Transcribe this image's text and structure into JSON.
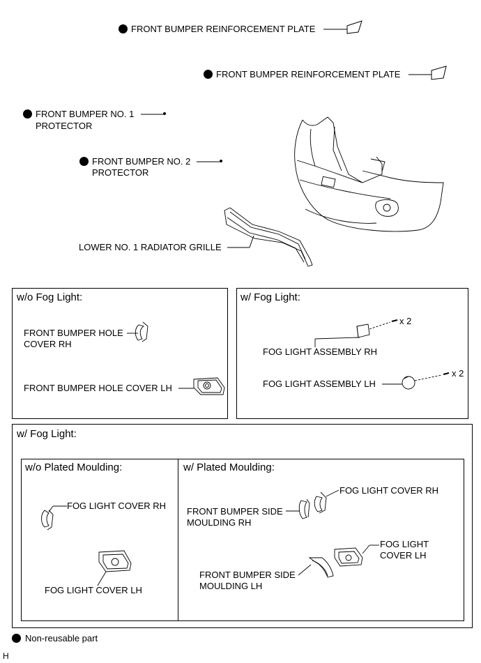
{
  "labels": {
    "reinforcement_plate_1": "FRONT BUMPER REINFORCEMENT PLATE",
    "reinforcement_plate_2": "FRONT BUMPER REINFORCEMENT PLATE",
    "protector_1_line1": "FRONT BUMPER NO. 1",
    "protector_1_line2": "PROTECTOR",
    "protector_2_line1": "FRONT BUMPER NO. 2",
    "protector_2_line2": "PROTECTOR",
    "lower_grille": "LOWER NO. 1 RADIATOR GRILLE"
  },
  "box_wo_fog": {
    "title": "w/o Fog Light:",
    "hole_cover_rh_line1": "FRONT BUMPER HOLE",
    "hole_cover_rh_line2": "COVER RH",
    "hole_cover_lh": "FRONT BUMPER HOLE COVER LH"
  },
  "box_w_fog": {
    "title": "w/ Fog Light:",
    "fog_assy_rh": "FOG LIGHT ASSEMBLY RH",
    "fog_assy_lh": "FOG LIGHT ASSEMBLY LH",
    "qty_rh": "x 2",
    "qty_lh": "x 2"
  },
  "box_w_fog_lower": {
    "title": "w/ Fog Light:",
    "wo_plated": {
      "title": "w/o Plated Moulding:",
      "cover_rh": "FOG LIGHT COVER RH",
      "cover_lh": "FOG LIGHT COVER LH"
    },
    "w_plated": {
      "title": "w/ Plated Moulding:",
      "cover_rh": "FOG LIGHT COVER RH",
      "side_moulding_rh_line1": "FRONT BUMPER SIDE",
      "side_moulding_rh_line2": "MOULDING RH",
      "cover_lh_line1": "FOG LIGHT",
      "cover_lh_line2": "COVER LH",
      "side_moulding_lh_line1": "FRONT BUMPER SIDE",
      "side_moulding_lh_line2": "MOULDING LH"
    }
  },
  "legend": {
    "non_reusable": "Non-reusable part"
  },
  "corner_code": "H"
}
